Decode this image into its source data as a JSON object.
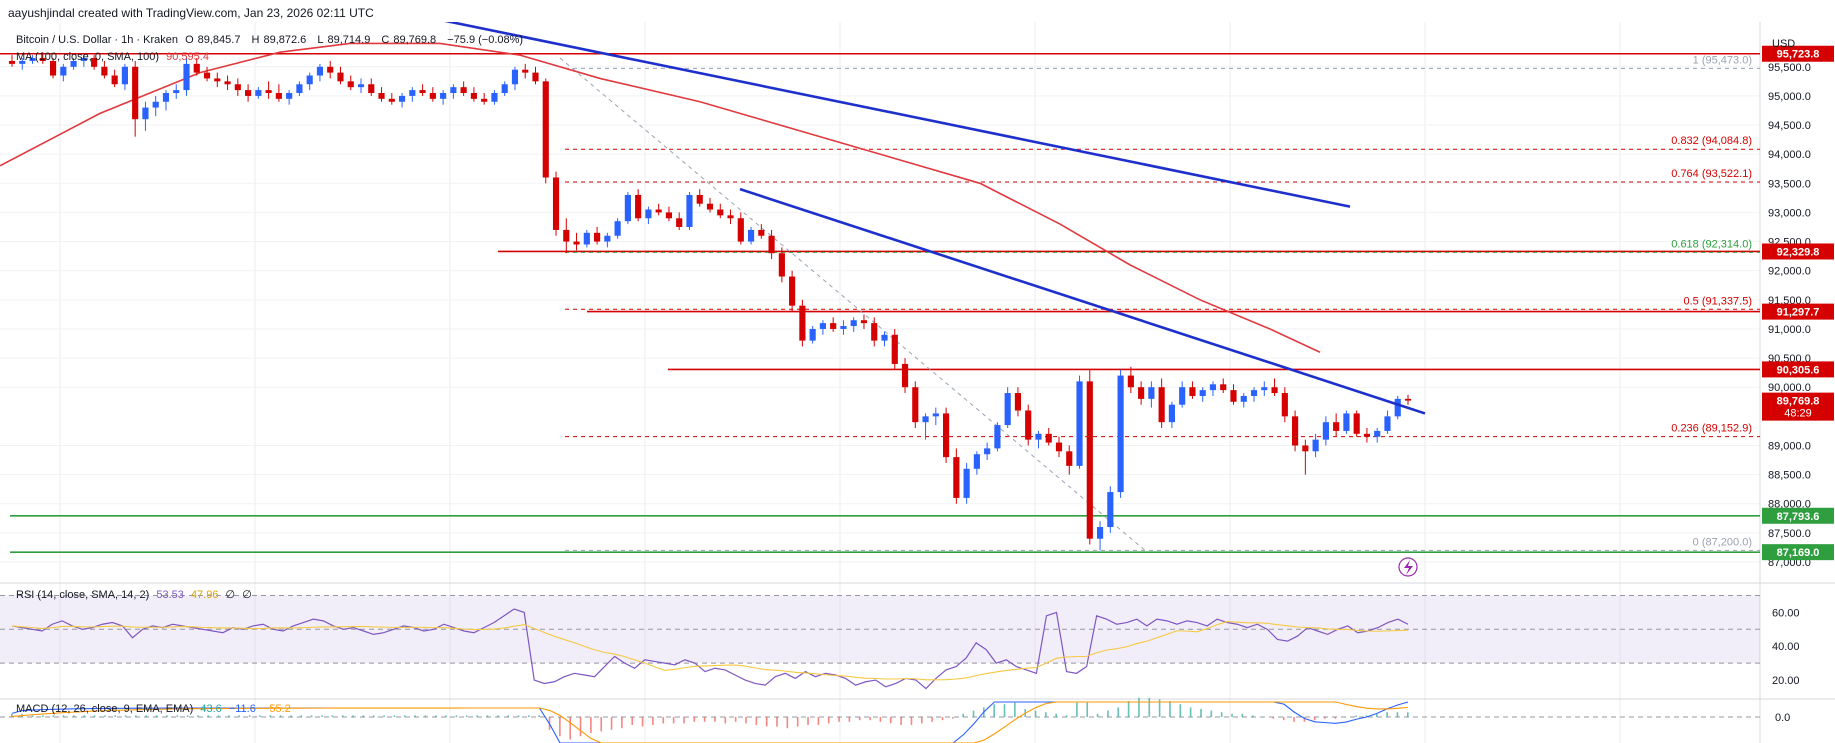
{
  "credit": "aayushjindal created with TradingView.com, Jan 23, 2026 02:11 UTC",
  "colors": {
    "up": "#2962ff",
    "down": "#d50000",
    "ma": "#e0393e",
    "trend": "#1e30cc",
    "support": "#2e9e3e",
    "rsi": "#7e57c2",
    "rsi_sma": "#f5c842",
    "macd": "#2962ff",
    "signal": "#ff9800"
  },
  "legend": {
    "symbol": "Bitcoin / U.S. Dollar · 1h · Kraken",
    "o_label": "O",
    "o": "89,845.7",
    "h_label": "H",
    "h": "89,872.6",
    "l_label": "L",
    "l": "89,714.9",
    "c_label": "C",
    "c": "89,769.8",
    "change": "−75.9 (−0.08%)",
    "ma_label": "MA (100, close, 0, SMA, 100)",
    "ma_value": "90,595.4"
  },
  "rsi_legend": {
    "label": "RSI (14, close, SMA, 14, 2)",
    "v1": "53.53",
    "v2": "47.96",
    "v3": "∅",
    "v4": "∅"
  },
  "macd_legend": {
    "label": "MACD (12, 26, close, 9, EMA, EMA)",
    "v1": "43.6",
    "v2": "−11.6",
    "v3": "−55.2"
  },
  "axis_currency": "USD",
  "chart_data": {
    "type": "candlestick",
    "y_ticks": [
      "95,500.0",
      "95,000.0",
      "94,500.0",
      "94,000.0",
      "93,500.0",
      "93,000.0",
      "92,500.0",
      "92,000.0",
      "91,500.0",
      "91,000.0",
      "90,500.0",
      "90,000.0",
      "89,000.0",
      "88,500.0",
      "88,000.0",
      "87,500.0",
      "87,000.0"
    ],
    "ylim": [
      87000,
      96200
    ],
    "fib_levels": [
      {
        "ratio": "1",
        "value": "95,473.0",
        "price": 95473
      },
      {
        "ratio": "0.832",
        "value": "94,084.8",
        "price": 94084.8
      },
      {
        "ratio": "0.764",
        "value": "93,522.1",
        "price": 93522.1
      },
      {
        "ratio": "0.618",
        "value": "92,314.0",
        "price": 92314
      },
      {
        "ratio": "0.5",
        "value": "91,337.5",
        "price": 91337.5
      },
      {
        "ratio": "0.236",
        "value": "89,152.9",
        "price": 89152.9
      },
      {
        "ratio": "0",
        "value": "87,200.0",
        "price": 87200
      }
    ],
    "price_tags": [
      {
        "label": "95,723.8",
        "price": 95723.8,
        "color": "#d50000"
      },
      {
        "label": "92,329.8",
        "price": 92329.8,
        "color": "#d50000"
      },
      {
        "label": "91,297.7",
        "price": 91297.7,
        "color": "#d50000"
      },
      {
        "label": "90,305.6",
        "price": 90305.6,
        "color": "#d50000"
      },
      {
        "label": "89,769.8",
        "price": 89769.8,
        "color": "#d50000",
        "sub": "48:29"
      },
      {
        "label": "87,793.6",
        "price": 87793.6,
        "color": "#2e9e3e"
      },
      {
        "label": "87,169.0",
        "price": 87169,
        "color": "#2e9e3e"
      }
    ],
    "resistance_lines": [
      95723.8,
      92329.8,
      91297.7,
      90305.6
    ],
    "support_lines": [
      87793.6,
      87169
    ],
    "candles": [
      [
        95600,
        95700,
        95500,
        95550
      ],
      [
        95550,
        95650,
        95450,
        95600
      ],
      [
        95600,
        95700,
        95550,
        95650
      ],
      [
        95650,
        95750,
        95550,
        95600
      ],
      [
        95600,
        95650,
        95300,
        95350
      ],
      [
        95350,
        95550,
        95250,
        95500
      ],
      [
        95500,
        95650,
        95450,
        95600
      ],
      [
        95600,
        95700,
        95500,
        95650
      ],
      [
        95650,
        95700,
        95450,
        95500
      ],
      [
        95500,
        95600,
        95300,
        95350
      ],
      [
        95350,
        95450,
        95150,
        95200
      ],
      [
        95200,
        95550,
        95100,
        95500
      ],
      [
        95500,
        95600,
        94300,
        94600
      ],
      [
        94600,
        94900,
        94400,
        94800
      ],
      [
        94800,
        95000,
        94650,
        94900
      ],
      [
        94900,
        95100,
        94750,
        95050
      ],
      [
        95050,
        95200,
        94950,
        95100
      ],
      [
        95100,
        95650,
        95000,
        95550
      ],
      [
        95550,
        95650,
        95350,
        95400
      ],
      [
        95400,
        95500,
        95250,
        95300
      ],
      [
        95300,
        95400,
        95150,
        95250
      ],
      [
        95250,
        95350,
        95100,
        95200
      ],
      [
        95200,
        95300,
        95000,
        95100
      ],
      [
        95100,
        95200,
        94900,
        95000
      ],
      [
        95000,
        95150,
        94950,
        95100
      ],
      [
        95100,
        95250,
        94950,
        95050
      ],
      [
        95050,
        95200,
        94900,
        94950
      ],
      [
        94950,
        95100,
        94850,
        95050
      ],
      [
        95050,
        95250,
        95000,
        95200
      ],
      [
        95200,
        95400,
        95100,
        95350
      ],
      [
        95350,
        95550,
        95250,
        95500
      ],
      [
        95500,
        95600,
        95300,
        95400
      ],
      [
        95400,
        95500,
        95200,
        95250
      ],
      [
        95250,
        95350,
        95100,
        95150
      ],
      [
        95150,
        95300,
        95050,
        95200
      ],
      [
        95200,
        95300,
        95000,
        95050
      ],
      [
        95050,
        95150,
        94900,
        94950
      ],
      [
        94950,
        95050,
        94850,
        94900
      ],
      [
        94900,
        95050,
        94800,
        95000
      ],
      [
        95000,
        95150,
        94900,
        95100
      ],
      [
        95100,
        95200,
        95000,
        95050
      ],
      [
        95050,
        95150,
        94900,
        94950
      ],
      [
        94950,
        95100,
        94850,
        95050
      ],
      [
        95050,
        95200,
        94950,
        95150
      ],
      [
        95150,
        95250,
        95000,
        95050
      ],
      [
        95050,
        95150,
        94900,
        94950
      ],
      [
        94950,
        95050,
        94850,
        94900
      ],
      [
        94900,
        95100,
        94850,
        95050
      ],
      [
        95050,
        95250,
        95000,
        95200
      ],
      [
        95200,
        95500,
        95100,
        95450
      ],
      [
        95450,
        95550,
        95300,
        95400
      ],
      [
        95400,
        95500,
        95200,
        95250
      ],
      [
        95250,
        95300,
        93500,
        93600
      ],
      [
        93600,
        93700,
        92600,
        92700
      ],
      [
        92700,
        92900,
        92300,
        92500
      ],
      [
        92500,
        92650,
        92350,
        92450
      ],
      [
        92450,
        92700,
        92400,
        92650
      ],
      [
        92650,
        92750,
        92450,
        92500
      ],
      [
        92500,
        92650,
        92400,
        92600
      ],
      [
        92600,
        92900,
        92550,
        92850
      ],
      [
        92850,
        93350,
        92800,
        93300
      ],
      [
        93300,
        93400,
        92850,
        92900
      ],
      [
        92900,
        93100,
        92800,
        93050
      ],
      [
        93050,
        93150,
        92950,
        93000
      ],
      [
        93000,
        93100,
        92850,
        92900
      ],
      [
        92900,
        93000,
        92700,
        92750
      ],
      [
        92750,
        93350,
        92700,
        93300
      ],
      [
        93300,
        93400,
        93100,
        93150
      ],
      [
        93150,
        93250,
        93000,
        93050
      ],
      [
        93050,
        93150,
        92900,
        92950
      ],
      [
        92950,
        93050,
        92800,
        92900
      ],
      [
        92900,
        93000,
        92450,
        92500
      ],
      [
        92500,
        92750,
        92450,
        92700
      ],
      [
        92700,
        92800,
        92550,
        92600
      ],
      [
        92600,
        92700,
        92200,
        92300
      ],
      [
        92300,
        92400,
        91800,
        91900
      ],
      [
        91900,
        92000,
        91300,
        91400
      ],
      [
        91400,
        91500,
        90700,
        90800
      ],
      [
        90800,
        91050,
        90750,
        91000
      ],
      [
        91000,
        91150,
        90900,
        91100
      ],
      [
        91100,
        91200,
        90950,
        91000
      ],
      [
        91000,
        91150,
        90900,
        91050
      ],
      [
        91050,
        91200,
        90950,
        91150
      ],
      [
        91150,
        91250,
        91000,
        91100
      ],
      [
        91100,
        91200,
        90700,
        90800
      ],
      [
        90800,
        90950,
        90700,
        90900
      ],
      [
        90900,
        91000,
        90300,
        90400
      ],
      [
        90400,
        90500,
        89900,
        90000
      ],
      [
        90000,
        90100,
        89300,
        89400
      ],
      [
        89400,
        89550,
        89100,
        89500
      ],
      [
        89500,
        89650,
        89350,
        89550
      ],
      [
        89550,
        89650,
        88700,
        88800
      ],
      [
        88800,
        88950,
        88000,
        88100
      ],
      [
        88100,
        88700,
        88000,
        88600
      ],
      [
        88600,
        88900,
        88500,
        88850
      ],
      [
        88850,
        89050,
        88750,
        88950
      ],
      [
        88950,
        89400,
        88900,
        89350
      ],
      [
        89350,
        90000,
        89300,
        89900
      ],
      [
        89900,
        90000,
        89500,
        89600
      ],
      [
        89600,
        89700,
        89000,
        89100
      ],
      [
        89100,
        89250,
        88950,
        89200
      ],
      [
        89200,
        89300,
        89000,
        89050
      ],
      [
        89050,
        89150,
        88800,
        88900
      ],
      [
        88900,
        89000,
        88500,
        88650
      ],
      [
        88650,
        90200,
        88600,
        90100
      ],
      [
        90100,
        90300,
        87300,
        87400
      ],
      [
        87400,
        87700,
        87200,
        87600
      ],
      [
        87600,
        88300,
        87500,
        88200
      ],
      [
        88200,
        90300,
        88100,
        90200
      ],
      [
        90200,
        90350,
        89900,
        90000
      ],
      [
        90000,
        90100,
        89700,
        89800
      ],
      [
        89800,
        90100,
        89650,
        90000
      ],
      [
        90000,
        90150,
        89300,
        89400
      ],
      [
        89400,
        89750,
        89300,
        89700
      ],
      [
        89700,
        90100,
        89650,
        90000
      ],
      [
        90000,
        90100,
        89800,
        89850
      ],
      [
        89850,
        90000,
        89750,
        89950
      ],
      [
        89950,
        90100,
        89850,
        90050
      ],
      [
        90050,
        90150,
        89900,
        89950
      ],
      [
        89950,
        90050,
        89700,
        89750
      ],
      [
        89750,
        89900,
        89650,
        89850
      ],
      [
        89850,
        90000,
        89750,
        89950
      ],
      [
        89950,
        90100,
        89850,
        90000
      ],
      [
        90000,
        90150,
        89850,
        89900
      ],
      [
        89900,
        90000,
        89400,
        89500
      ],
      [
        89500,
        89600,
        88900,
        89000
      ],
      [
        89000,
        89100,
        88500,
        88900
      ],
      [
        88900,
        89200,
        88800,
        89100
      ],
      [
        89100,
        89500,
        89000,
        89400
      ],
      [
        89400,
        89550,
        89150,
        89250
      ],
      [
        89250,
        89600,
        89200,
        89550
      ],
      [
        89550,
        89600,
        89150,
        89200
      ],
      [
        89200,
        89300,
        89050,
        89150
      ],
      [
        89150,
        89300,
        89050,
        89250
      ],
      [
        89250,
        89600,
        89200,
        89500
      ],
      [
        89500,
        89850,
        89450,
        89800
      ],
      [
        89800,
        89870,
        89700,
        89770
      ]
    ],
    "ma100": [
      [
        0,
        93800
      ],
      [
        100,
        94700
      ],
      [
        200,
        95400
      ],
      [
        280,
        95750
      ],
      [
        350,
        95900
      ],
      [
        440,
        95900
      ],
      [
        520,
        95700
      ],
      [
        600,
        95300
      ],
      [
        700,
        94900
      ],
      [
        800,
        94400
      ],
      [
        900,
        93900
      ],
      [
        980,
        93500
      ],
      [
        1060,
        92800
      ],
      [
        1130,
        92100
      ],
      [
        1200,
        91500
      ],
      [
        1270,
        91000
      ],
      [
        1320,
        90600
      ]
    ],
    "trendlines": [
      {
        "from": [
          300,
          96800
        ],
        "to": [
          1350,
          93100
        ]
      },
      {
        "from": [
          740,
          93400
        ],
        "to": [
          1425,
          89550
        ]
      }
    ],
    "fib_diag": {
      "from": [
        560,
        95650
      ],
      "to": [
        1145,
        87200
      ]
    },
    "rsi": {
      "ylim": [
        10,
        75
      ],
      "ticks": [
        "60.00",
        "40.00",
        "20.00"
      ],
      "band": [
        30,
        70
      ],
      "mid": 50,
      "values": [
        52,
        51,
        50,
        49,
        53,
        55,
        52,
        50,
        51,
        53,
        54,
        52,
        45,
        50,
        52,
        51,
        53,
        52,
        51,
        50,
        49,
        48,
        51,
        50,
        52,
        53,
        50,
        49,
        52,
        54,
        56,
        55,
        52,
        50,
        51,
        49,
        47,
        48,
        50,
        52,
        51,
        49,
        50,
        53,
        51,
        49,
        48,
        51,
        54,
        58,
        62,
        60,
        20,
        18,
        19,
        22,
        24,
        23,
        22,
        28,
        34,
        30,
        27,
        32,
        31,
        30,
        29,
        32,
        30,
        25,
        27,
        26,
        23,
        20,
        18,
        17,
        22,
        24,
        21,
        25,
        22,
        24,
        23,
        21,
        17,
        19,
        20,
        16,
        18,
        21,
        20,
        15,
        21,
        26,
        28,
        33,
        42,
        38,
        30,
        32,
        28,
        26,
        24,
        58,
        60,
        25,
        24,
        28,
        58,
        56,
        53,
        54,
        56,
        52,
        56,
        55,
        53,
        55,
        54,
        52,
        56,
        54,
        53,
        51,
        53,
        50,
        44,
        43,
        46,
        51,
        49,
        47,
        50,
        52,
        48,
        49,
        51,
        54,
        56,
        53
      ]
    },
    "macd": {
      "ticks": [
        "0.0"
      ],
      "hist": [
        2,
        2,
        1,
        1,
        1,
        1,
        1,
        1,
        1,
        1,
        1,
        1,
        1,
        1,
        1,
        1,
        1,
        1,
        1,
        1,
        1,
        1,
        1,
        1,
        1,
        1,
        1,
        1,
        1,
        1,
        1,
        1,
        1,
        1,
        1,
        1,
        1,
        1,
        1,
        1,
        1,
        1,
        1,
        1,
        1,
        1,
        1,
        1,
        1,
        1,
        1,
        1,
        -8,
        -12,
        -14,
        -12,
        -10,
        -9,
        -8,
        -7,
        -5,
        -6,
        -5,
        -4,
        -4,
        -4,
        -3,
        -3,
        -3,
        -4,
        -3,
        -4,
        -5,
        -6,
        -6,
        -7,
        -6,
        -5,
        -5,
        -4,
        -3,
        -3,
        -2,
        -2,
        -3,
        -4,
        -5,
        -5,
        -4,
        -3,
        -2,
        -1,
        2,
        4,
        6,
        8,
        8,
        9,
        5,
        4,
        3,
        2,
        1,
        9,
        9,
        2,
        4,
        6,
        10,
        12,
        12,
        11,
        10,
        8,
        6,
        5,
        4,
        3,
        2,
        2,
        1,
        0,
        -1,
        -2,
        -3,
        -3,
        -2,
        -1,
        -1,
        0,
        1,
        1,
        2,
        3,
        3,
        3
      ]
    }
  }
}
